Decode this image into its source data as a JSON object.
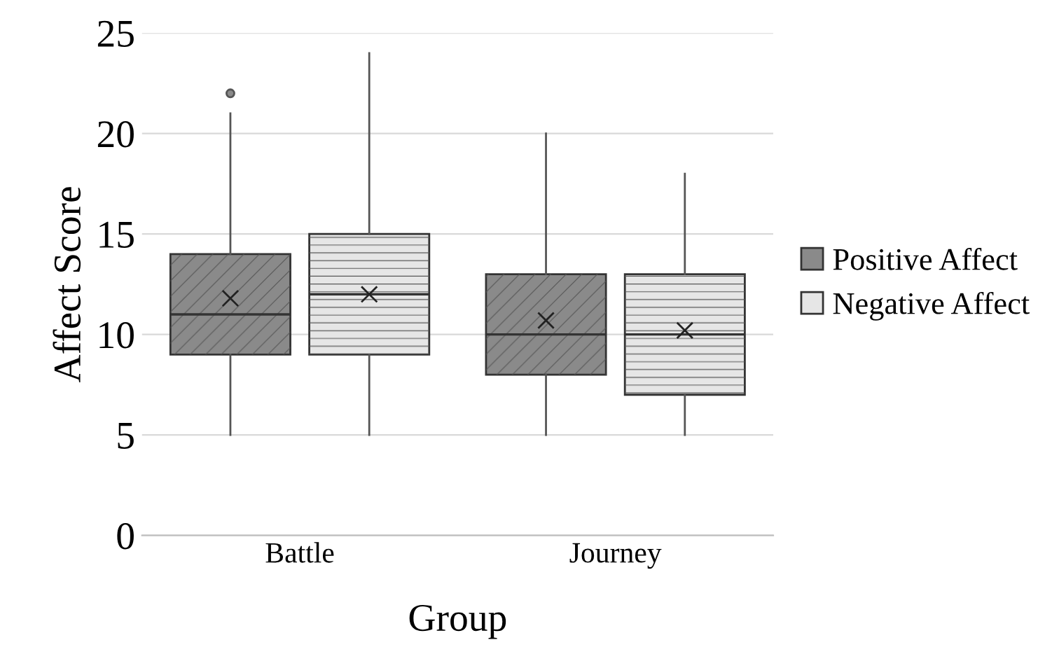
{
  "chart_data": {
    "type": "box",
    "xlabel": "Group",
    "ylabel": "Affect Score",
    "categories": [
      "Battle",
      "Journey"
    ],
    "series": [
      {
        "name": "Positive Affect",
        "color": "#8a8a8a",
        "boxes": [
          {
            "low": 5,
            "q1": 9,
            "median": 11,
            "q3": 14,
            "high": 21,
            "mean": 11.8,
            "outliers": [
              22
            ]
          },
          {
            "low": 5,
            "q1": 8,
            "median": 10,
            "q3": 13,
            "high": 20,
            "mean": 10.7
          }
        ]
      },
      {
        "name": "Negative Affect",
        "color": "#e6e6e6",
        "boxes": [
          {
            "low": 5,
            "q1": 9,
            "median": 12,
            "q3": 15,
            "high": 24,
            "mean": 12.0
          },
          {
            "low": 5,
            "q1": 7,
            "median": 10,
            "q3": 13,
            "high": 18,
            "mean": 10.2
          }
        ]
      }
    ],
    "ylim": [
      0,
      25
    ],
    "yticks": [
      0,
      5,
      10,
      15,
      20,
      25
    ],
    "grid": "y",
    "legend": "right"
  }
}
